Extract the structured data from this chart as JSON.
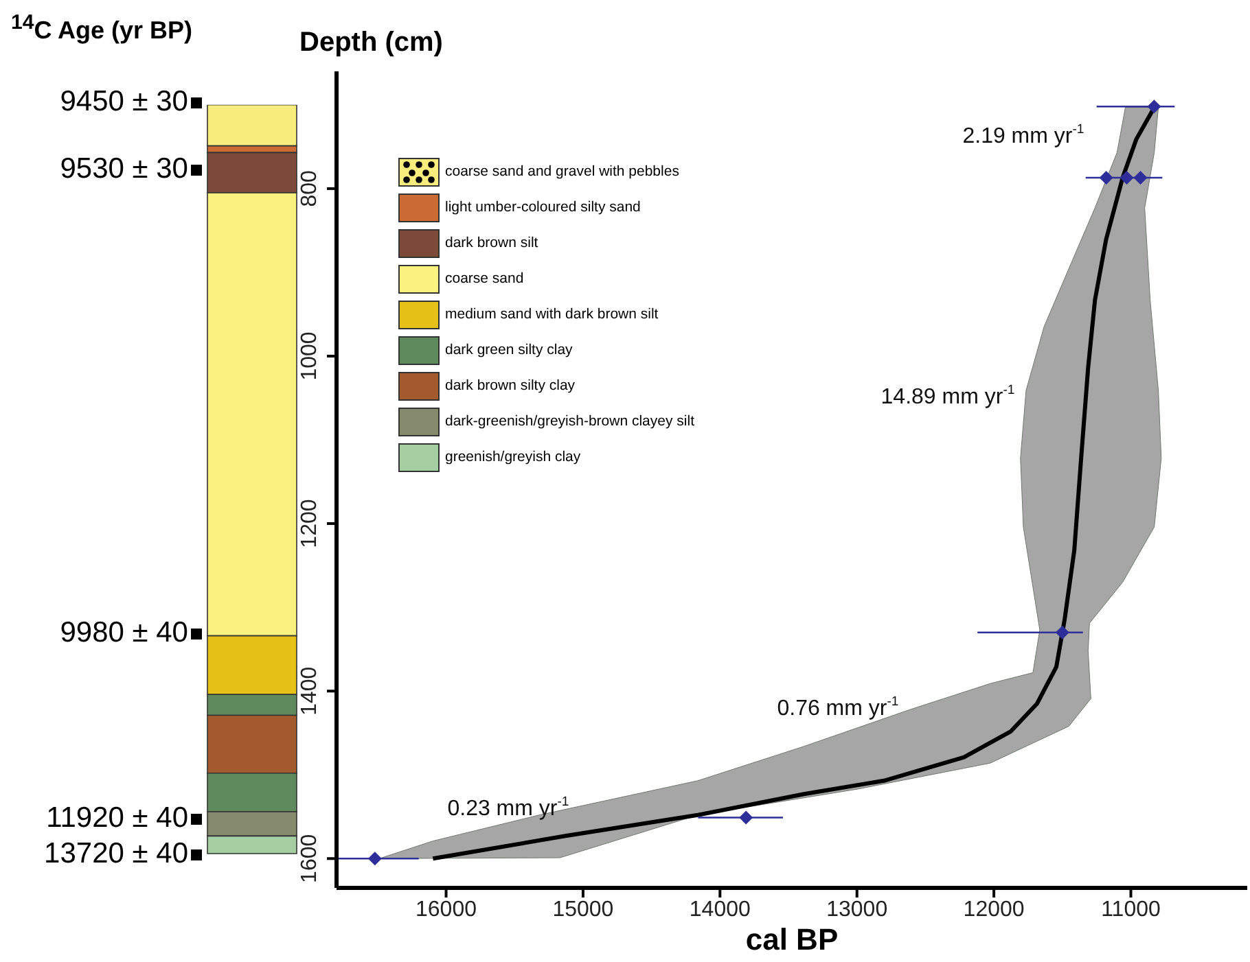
{
  "chart_data": [
    {
      "type": "bar",
      "title": "$^{14}$C Age (yr BP)",
      "categories": [
        null
      ],
      "ylim": [
        1600,
        700
      ],
      "yticks": [
        800,
        1000,
        1200,
        1400,
        1600
      ],
      "tick_labels": false,
      "legend": "top left",
      "series": [
        {
          "name": "coarse sand and gravel with pebbles",
          "color": "#f7ec7c",
          "base": [
            700
          ],
          "values": [
            49
          ]
        },
        {
          "name": "light umber-coloured silty sand",
          "color": "#cd6b35",
          "base": [
            749
          ],
          "values": [
            8
          ]
        },
        {
          "name": "dark brown silt",
          "color": "#7d4a3a",
          "base": [
            757
          ],
          "values": [
            48
          ]
        },
        {
          "name": "coarse sand",
          "color": "#fbf17e",
          "base": [
            805
          ],
          "values": [
            529
          ]
        },
        {
          "name": "medium sand with dark brown silt",
          "color": "#e6c219",
          "base": [
            1334
          ],
          "values": [
            70
          ]
        },
        {
          "name": "dark green silty clay",
          "color": "#5e8a5e",
          "base": [
            1404
          ],
          "values": [
            25
          ]
        },
        {
          "name": "dark brown silty clay",
          "color": "#a35a2c",
          "base": [
            1429
          ],
          "values": [
            69
          ]
        },
        {
          "color": "#5e8a5e",
          "base": [
            1498
          ],
          "values": [
            46
          ]
        },
        {
          "name": "dark-greenish/greyish-brown clayey silt",
          "color": "#868a6c",
          "base": [
            1544
          ],
          "values": [
            29
          ]
        },
        {
          "name": "greenish/greyish clay",
          "color": "#a5cfa2",
          "base": [
            1573
          ],
          "values": [
            21
          ]
        }
      ],
      "annotations": [
        "9450 ± 30",
        "9530 ± 30",
        "9980 ± 40",
        "11920 ± 40",
        "13720 ± 40"
      ]
    },
    {
      "type": "line",
      "xlabel": "cal BP",
      "ylabel": "Depth (cm)",
      "xlim": [
        16800,
        10150
      ],
      "xticks": [
        16000,
        15000,
        14000,
        13000,
        12000,
        11000
      ],
      "ylim": [
        1635,
        660
      ],
      "yticks": [
        800,
        1000,
        1200,
        1400,
        1600
      ],
      "series": [
        {
          "type": "area",
          "color": "#a6a6a6",
          "x": [
            11040,
            11101,
            11262,
            11433,
            11634,
            11765,
            11806,
            11785,
            11705,
            11665,
            11715,
            12027,
            12611,
            13387,
            14162,
            15320,
            16096,
            16488,
            15169,
            14162,
            12994,
            12027,
            11453,
            11292,
            11312,
            11302,
            11060,
            10829,
            10778,
            10799,
            10859,
            10899,
            10829,
            10799
          ],
          "values": [
            703,
            757,
            823,
            888,
            965,
            1041,
            1122,
            1204,
            1286,
            1327,
            1378,
            1391,
            1422,
            1466,
            1507,
            1548,
            1579,
            1600,
            1599,
            1548,
            1517,
            1486,
            1442,
            1409,
            1352,
            1319,
            1270,
            1204,
            1122,
            1041,
            933,
            823,
            757,
            703
          ]
        },
        {
          "type": "line",
          "color": "#000000",
          "x": [
            10829,
            10960,
            11060,
            11181,
            11262,
            11312,
            11363,
            11413,
            11483,
            11544,
            11685,
            11876,
            12219,
            12803,
            13387,
            14162,
            15129,
            16096
          ],
          "values": [
            703,
            741,
            787,
            861,
            933,
            1014,
            1122,
            1232,
            1314,
            1371,
            1415,
            1448,
            1479,
            1507,
            1523,
            1548,
            1573,
            1600
          ]
        },
        {
          "type": "scatter",
          "color": "#2e2e9a",
          "marker": "diamond",
          "x": [
            10830,
            11180,
            11030,
            10930,
            11500,
            13810,
            16520
          ],
          "values": [
            702,
            787,
            787,
            787,
            1330,
            1551,
            1600
          ],
          "xerrors": [
            [
              10680,
              11250
            ],
            null,
            [
              10770,
              11330
            ],
            null,
            [
              11350,
              12120
            ],
            [
              13540,
              14160
            ],
            [
              16200,
              16800
            ]
          ]
        }
      ],
      "annotations": [
        "2.19 mm yr$^{-1}$",
        "14.89 mm yr$^{-1}$",
        "0.76 mm yr$^{-1}$",
        "0.23 mm yr$^{-1}$"
      ]
    }
  ]
}
